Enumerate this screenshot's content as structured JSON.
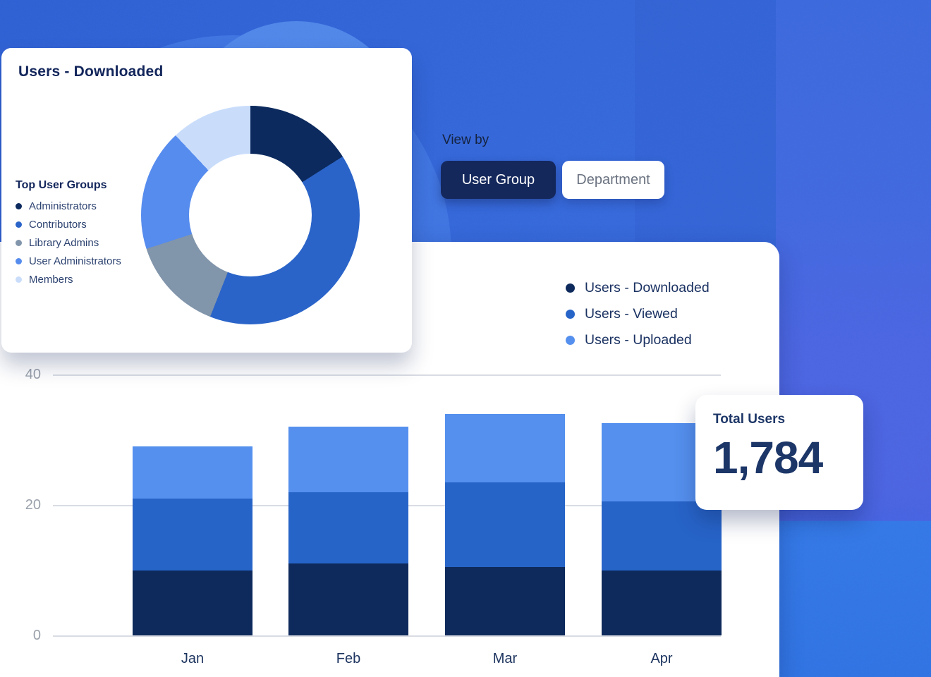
{
  "background": {
    "base_color": "#3467da",
    "circle_outer_color": "#3e73e0",
    "circle_inner_color": "#4f86e8",
    "right_strip_top_color": "#4a64e1",
    "right_strip_bottom_color": "#2e72e2"
  },
  "donut_card": {
    "title": "Users - Downloaded",
    "legend_title": "Top User Groups"
  },
  "view_by": {
    "label": "View by",
    "options": [
      {
        "label": "User Group",
        "selected": true
      },
      {
        "label": "Department",
        "selected": false
      }
    ]
  },
  "total_card": {
    "label": "Total Users",
    "value": "1,784"
  },
  "chart_data": [
    {
      "type": "pie",
      "subtype": "donut",
      "title": "Users - Downloaded",
      "legend_title": "Top User Groups",
      "labels": [
        "Administrators",
        "Contributors",
        "Library Admins",
        "User Administrators",
        "Members"
      ],
      "values": [
        16,
        40,
        14,
        18,
        12
      ],
      "unit": "percent",
      "colors": [
        "#0c2a5e",
        "#2a64c9",
        "#8195ab",
        "#568cee",
        "#c9ddfb"
      ],
      "hole_ratio": 0.56,
      "legend_position": "left"
    },
    {
      "type": "bar",
      "stacked": true,
      "categories": [
        "Jan",
        "Feb",
        "Mar",
        "Apr"
      ],
      "series": [
        {
          "name": "Users - Downloaded",
          "color": "#0e2a5c",
          "values": [
            10,
            11,
            10.5,
            10
          ]
        },
        {
          "name": "Users - Viewed",
          "color": "#2764c8",
          "values": [
            11,
            11,
            13,
            10.5
          ]
        },
        {
          "name": "Users - Uploaded",
          "color": "#5590ee",
          "values": [
            8,
            10,
            10.5,
            12
          ]
        }
      ],
      "totals": [
        29,
        32,
        34,
        32.5
      ],
      "xlabel": "",
      "ylabel": "",
      "ylim": [
        0,
        40
      ],
      "yticks": [
        0,
        20,
        40
      ],
      "grid": true,
      "legend_position": "top-right"
    }
  ]
}
